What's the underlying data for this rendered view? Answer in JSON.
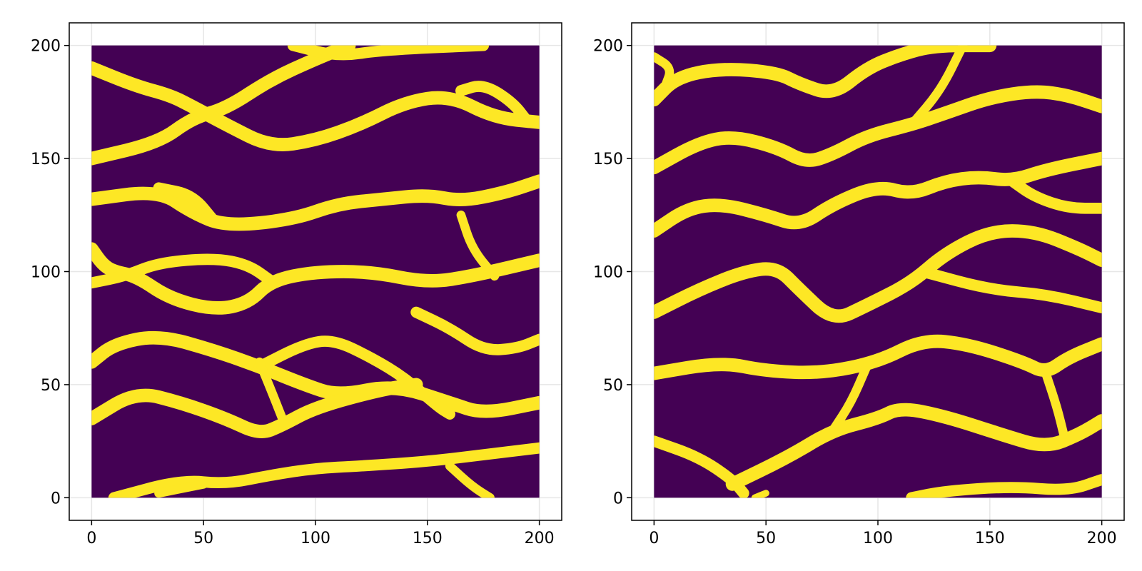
{
  "chart_data": [
    {
      "type": "heatmap",
      "title": "",
      "xlabel": "",
      "ylabel": "",
      "xlim": [
        -10,
        210
      ],
      "ylim": [
        -10,
        210
      ],
      "grid": true,
      "xticks": [
        0,
        50,
        100,
        150,
        200
      ],
      "yticks": [
        0,
        50,
        100,
        150,
        200
      ],
      "data_extent": {
        "x": [
          0,
          200
        ],
        "y": [
          0,
          200
        ]
      },
      "values": [
        0,
        1
      ],
      "colormap": {
        "0": "#440154",
        "1": "#fde725"
      },
      "description_of_values": "binary channel facies map",
      "channels": [
        {
          "points": [
            [
              0,
              150
            ],
            [
              30,
              157
            ],
            [
              45,
              168
            ],
            [
              60,
              172
            ],
            [
              80,
              185
            ],
            [
              100,
              194
            ],
            [
              115,
              200
            ]
          ],
          "width": 6
        },
        {
          "points": [
            [
              0,
              190
            ],
            [
              20,
              182
            ],
            [
              35,
              178
            ],
            [
              45,
              173
            ],
            [
              60,
              165
            ],
            [
              80,
              155
            ],
            [
              100,
              158
            ],
            [
              120,
              165
            ],
            [
              140,
              175
            ],
            [
              160,
              178
            ],
            [
              180,
              168
            ],
            [
              200,
              166
            ]
          ],
          "width": 6
        },
        {
          "points": [
            [
              90,
              200
            ],
            [
              110,
              195
            ],
            [
              130,
              198
            ],
            [
              175,
              200
            ]
          ],
          "width": 5
        },
        {
          "points": [
            [
              165,
              180
            ],
            [
              175,
              183
            ],
            [
              188,
              175
            ],
            [
              195,
              166
            ]
          ],
          "width": 5
        },
        {
          "points": [
            [
              0,
              132
            ],
            [
              30,
              136
            ],
            [
              45,
              126
            ],
            [
              60,
              120
            ],
            [
              90,
              123
            ],
            [
              110,
              130
            ],
            [
              130,
              132
            ],
            [
              150,
              134
            ],
            [
              165,
              131
            ],
            [
              185,
              135
            ],
            [
              200,
              140
            ]
          ],
          "width": 6
        },
        {
          "points": [
            [
              30,
              137
            ],
            [
              45,
              134
            ],
            [
              55,
              122
            ]
          ],
          "width": 5
        },
        {
          "points": [
            [
              0,
              110
            ],
            [
              5,
              103
            ],
            [
              10,
              100
            ],
            [
              20,
              98
            ],
            [
              35,
              88
            ],
            [
              55,
              83
            ],
            [
              70,
              86
            ],
            [
              80,
              96
            ],
            [
              100,
              100
            ],
            [
              125,
              100
            ],
            [
              150,
              95
            ],
            [
              170,
              98
            ],
            [
              200,
              105
            ]
          ],
          "width": 6
        },
        {
          "points": [
            [
              0,
              95
            ],
            [
              15,
              98
            ],
            [
              30,
              104
            ],
            [
              55,
              106
            ],
            [
              70,
              103
            ],
            [
              80,
              96
            ]
          ],
          "width": 5
        },
        {
          "points": [
            [
              0,
              60
            ],
            [
              10,
              68
            ],
            [
              30,
              72
            ],
            [
              55,
              65
            ],
            [
              75,
              58
            ],
            [
              95,
              50
            ],
            [
              110,
              45
            ],
            [
              135,
              50
            ],
            [
              160,
              42
            ],
            [
              175,
              37
            ],
            [
              200,
              42
            ]
          ],
          "width": 6
        },
        {
          "points": [
            [
              75,
              58
            ],
            [
              95,
              68
            ],
            [
              108,
              70
            ],
            [
              125,
              62
            ],
            [
              140,
              53
            ],
            [
              155,
              40
            ],
            [
              160,
              37
            ]
          ],
          "width": 5
        },
        {
          "points": [
            [
              0,
              35
            ],
            [
              20,
              47
            ],
            [
              40,
              42
            ],
            [
              60,
              35
            ],
            [
              75,
              28
            ],
            [
              85,
              32
            ],
            [
              100,
              40
            ],
            [
              130,
              48
            ],
            [
              145,
              50
            ]
          ],
          "width": 6
        },
        {
          "points": [
            [
              75,
              60
            ],
            [
              80,
              48
            ],
            [
              86,
              33
            ]
          ],
          "width": 4
        },
        {
          "points": [
            [
              145,
              82
            ],
            [
              160,
              75
            ],
            [
              175,
              65
            ],
            [
              190,
              66
            ],
            [
              200,
              70
            ]
          ],
          "width": 5
        },
        {
          "points": [
            [
              165,
              125
            ],
            [
              170,
              110
            ],
            [
              180,
              98
            ]
          ],
          "width": 4
        },
        {
          "points": [
            [
              10,
              0
            ],
            [
              40,
              8
            ],
            [
              60,
              6
            ],
            [
              80,
              10
            ],
            [
              100,
              13
            ],
            [
              120,
              14
            ],
            [
              150,
              16
            ],
            [
              175,
              19
            ],
            [
              200,
              22
            ]
          ],
          "width": 5
        },
        {
          "points": [
            [
              30,
              2
            ],
            [
              50,
              6
            ]
          ],
          "width": 4
        },
        {
          "points": [
            [
              160,
              14
            ],
            [
              170,
              5
            ],
            [
              178,
              0
            ]
          ],
          "width": 4
        }
      ]
    },
    {
      "type": "heatmap",
      "title": "",
      "xlabel": "",
      "ylabel": "",
      "xlim": [
        -10,
        210
      ],
      "ylim": [
        -10,
        210
      ],
      "grid": true,
      "xticks": [
        0,
        50,
        100,
        150,
        200
      ],
      "yticks": [
        0,
        50,
        100,
        150,
        200
      ],
      "data_extent": {
        "x": [
          0,
          200
        ],
        "y": [
          0,
          200
        ]
      },
      "values": [
        0,
        1
      ],
      "colormap": {
        "0": "#440154",
        "1": "#fde725"
      },
      "description_of_values": "binary channel facies map",
      "channels": [
        {
          "points": [
            [
              0,
              176
            ],
            [
              10,
              186
            ],
            [
              30,
              190
            ],
            [
              55,
              188
            ],
            [
              65,
              183
            ],
            [
              80,
              178
            ],
            [
              95,
              190
            ],
            [
              110,
              196
            ],
            [
              125,
              200
            ],
            [
              150,
              200
            ]
          ],
          "width": 6
        },
        {
          "points": [
            [
              0,
              195
            ],
            [
              8,
              190
            ],
            [
              5,
              182
            ]
          ],
          "width": 4
        },
        {
          "points": [
            [
              0,
              146
            ],
            [
              20,
              157
            ],
            [
              35,
              160
            ],
            [
              55,
              155
            ],
            [
              68,
              148
            ],
            [
              80,
              152
            ],
            [
              95,
              160
            ],
            [
              115,
              165
            ],
            [
              130,
              170
            ],
            [
              150,
              177
            ],
            [
              170,
              180
            ],
            [
              185,
              178
            ],
            [
              200,
              173
            ]
          ],
          "width": 6
        },
        {
          "points": [
            [
              115,
              165
            ],
            [
              128,
              180
            ],
            [
              138,
              200
            ]
          ],
          "width": 4
        },
        {
          "points": [
            [
              0,
              118
            ],
            [
              15,
              128
            ],
            [
              30,
              130
            ],
            [
              50,
              125
            ],
            [
              65,
              120
            ],
            [
              80,
              130
            ],
            [
              100,
              138
            ],
            [
              115,
              134
            ],
            [
              130,
              140
            ],
            [
              145,
              142
            ],
            [
              160,
              140
            ],
            [
              175,
              145
            ],
            [
              200,
              150
            ]
          ],
          "width": 6
        },
        {
          "points": [
            [
              160,
              140
            ],
            [
              170,
              133
            ],
            [
              185,
              128
            ],
            [
              200,
              128
            ]
          ],
          "width": 5
        },
        {
          "points": [
            [
              0,
              82
            ],
            [
              20,
              92
            ],
            [
              40,
              100
            ],
            [
              55,
              102
            ],
            [
              65,
              92
            ],
            [
              80,
              78
            ],
            [
              95,
              85
            ],
            [
              115,
              95
            ],
            [
              130,
              108
            ],
            [
              150,
              118
            ],
            [
              170,
              118
            ],
            [
              190,
              110
            ],
            [
              200,
              105
            ]
          ],
          "width": 6
        },
        {
          "points": [
            [
              120,
              100
            ],
            [
              150,
              92
            ],
            [
              175,
              90
            ],
            [
              200,
              84
            ]
          ],
          "width": 5
        },
        {
          "points": [
            [
              0,
              55
            ],
            [
              30,
              60
            ],
            [
              50,
              56
            ],
            [
              75,
              55
            ],
            [
              100,
              60
            ],
            [
              120,
              70
            ],
            [
              140,
              68
            ],
            [
              165,
              60
            ],
            [
              175,
              55
            ],
            [
              185,
              62
            ],
            [
              200,
              68
            ]
          ],
          "width": 6
        },
        {
          "points": [
            [
              0,
              25
            ],
            [
              20,
              18
            ],
            [
              35,
              8
            ],
            [
              40,
              2
            ]
          ],
          "width": 5
        },
        {
          "points": [
            [
              35,
              6
            ],
            [
              60,
              18
            ],
            [
              80,
              30
            ],
            [
              100,
              35
            ],
            [
              110,
              40
            ],
            [
              130,
              36
            ],
            [
              155,
              28
            ],
            [
              175,
              22
            ],
            [
              190,
              28
            ],
            [
              200,
              34
            ]
          ],
          "width": 6
        },
        {
          "points": [
            [
              80,
              30
            ],
            [
              88,
              42
            ],
            [
              95,
              58
            ]
          ],
          "width": 4
        },
        {
          "points": [
            [
              175,
              55
            ],
            [
              180,
              40
            ],
            [
              183,
              28
            ]
          ],
          "width": 4
        },
        {
          "points": [
            [
              45,
              0
            ],
            [
              50,
              2
            ]
          ],
          "width": 3
        },
        {
          "points": [
            [
              115,
              0
            ],
            [
              130,
              3
            ],
            [
              160,
              5
            ],
            [
              185,
              3
            ],
            [
              200,
              8
            ]
          ],
          "width": 5
        }
      ]
    }
  ]
}
